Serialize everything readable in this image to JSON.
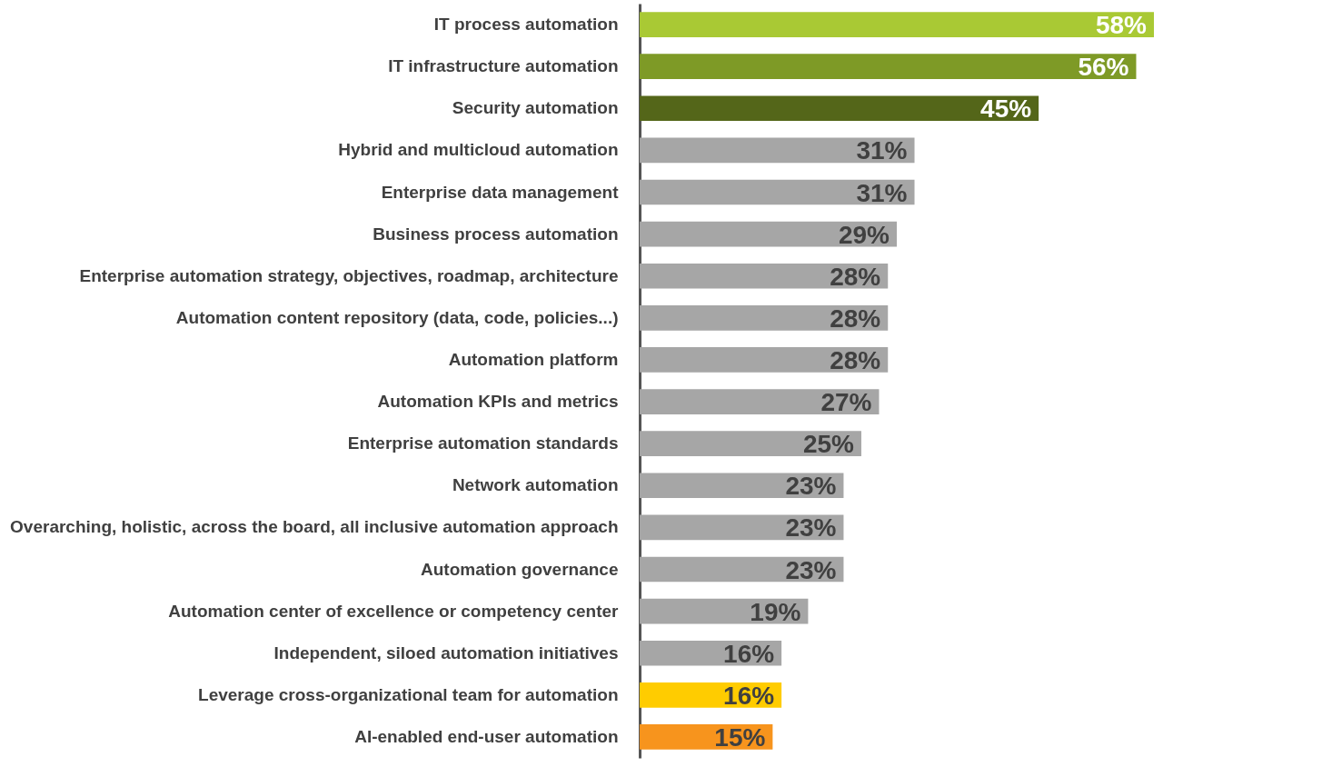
{
  "chart_data": {
    "type": "bar",
    "orientation": "horizontal",
    "categories": [
      "IT process automation",
      "IT infrastructure automation",
      "Security automation",
      "Hybrid and multicloud automation",
      "Enterprise data management",
      "Business process automation",
      "Enterprise automation strategy, objectives, roadmap, architecture",
      "Automation content repository (data, code, policies...)",
      "Automation platform",
      "Automation KPIs and metrics",
      "Enterprise automation standards",
      "Network automation",
      "Overarching, holistic, across the board, all inclusive automation approach",
      "Automation governance",
      "Automation center of excellence or competency center",
      "Independent, siloed automation initiatives",
      "Leverage cross-organizational team for automation",
      "AI-enabled end-user automation"
    ],
    "values": [
      58,
      56,
      45,
      31,
      31,
      29,
      28,
      28,
      28,
      27,
      25,
      23,
      23,
      23,
      19,
      16,
      16,
      15
    ],
    "value_labels": [
      "58%",
      "56%",
      "45%",
      "31%",
      "31%",
      "29%",
      "28%",
      "28%",
      "28%",
      "27%",
      "25%",
      "23%",
      "23%",
      "23%",
      "19%",
      "16%",
      "16%",
      "15%"
    ],
    "colors": [
      "#a9c934",
      "#7e9a26",
      "#546619",
      "#a6a6a6",
      "#a6a6a6",
      "#a6a6a6",
      "#a6a6a6",
      "#a6a6a6",
      "#a6a6a6",
      "#a6a6a6",
      "#a6a6a6",
      "#a6a6a6",
      "#a6a6a6",
      "#a6a6a6",
      "#a6a6a6",
      "#a6a6a6",
      "#ffcc00",
      "#f7941d"
    ]
  }
}
